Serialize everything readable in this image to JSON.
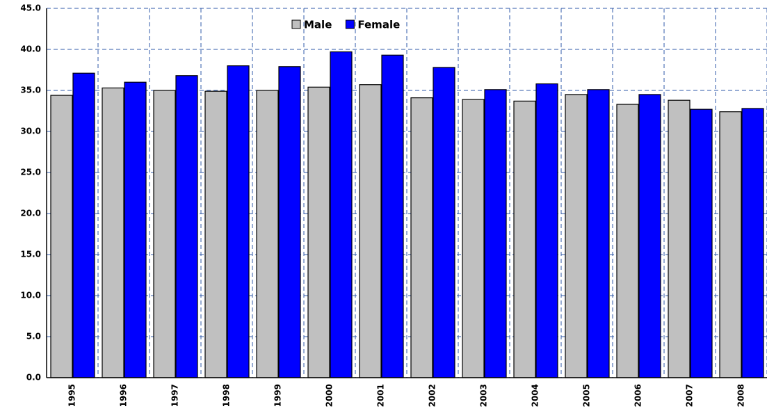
{
  "chart_data": {
    "type": "bar",
    "categories": [
      "1995",
      "1996",
      "1997",
      "1998",
      "1999",
      "2000",
      "2001",
      "2002",
      "2003",
      "2004",
      "2005",
      "2006",
      "2007",
      "2008"
    ],
    "series": [
      {
        "name": "Male",
        "color": "#c0c0c0",
        "values": [
          34.4,
          35.3,
          35.0,
          34.9,
          35.0,
          35.4,
          35.7,
          34.1,
          33.9,
          33.7,
          34.5,
          33.3,
          33.8,
          32.4
        ]
      },
      {
        "name": "Female",
        "color": "#0000ff",
        "values": [
          37.1,
          36.0,
          36.8,
          38.0,
          37.9,
          39.7,
          39.3,
          37.8,
          35.1,
          35.8,
          35.1,
          34.5,
          32.7,
          32.8
        ]
      }
    ],
    "ylim": [
      0,
      45
    ],
    "yticks": [
      {
        "value": 0,
        "label": "0.0"
      },
      {
        "value": 5,
        "label": "5.0"
      },
      {
        "value": 10,
        "label": "10.0"
      },
      {
        "value": 15,
        "label": "15.0"
      },
      {
        "value": 20,
        "label": "20.0"
      },
      {
        "value": 25,
        "label": "25.0"
      },
      {
        "value": 30,
        "label": "30.0"
      },
      {
        "value": 35,
        "label": "35.0"
      },
      {
        "value": 40,
        "label": "40.0"
      },
      {
        "value": 45,
        "label": "45.0"
      }
    ],
    "grid": true,
    "legend": "top"
  }
}
